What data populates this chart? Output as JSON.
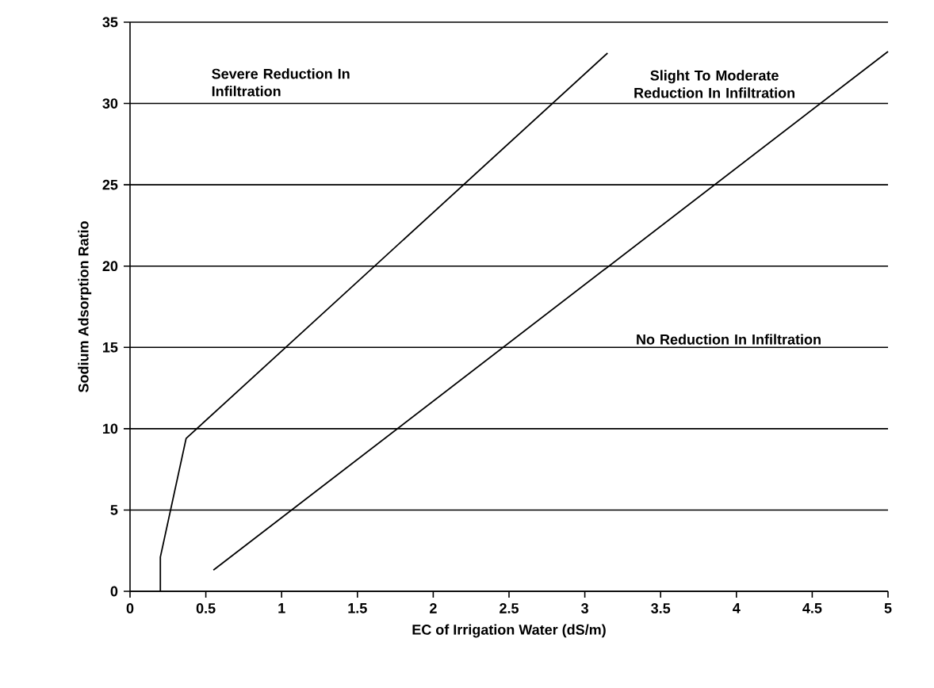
{
  "chart_data": {
    "type": "line",
    "xlabel": "EC of Irrigation Water (dS/m)",
    "ylabel": "Sodium Adsorption Ratio",
    "series": [
      {
        "color": "#000000",
        "x": [
          0.2,
          0.2,
          0.37,
          3.15
        ],
        "values": [
          0,
          2.1,
          9.4,
          33.1
        ]
      },
      {
        "color": "#000000",
        "x": [
          0.55,
          5
        ],
        "values": [
          1.3,
          33.2
        ]
      }
    ],
    "xlim": [
      0,
      5
    ],
    "ylim": [
      0,
      35
    ],
    "xticks": [
      0,
      0.5,
      1,
      1.5,
      2,
      2.5,
      3,
      3.5,
      4,
      4.5,
      5
    ],
    "yticks": [
      0,
      5,
      10,
      15,
      20,
      25,
      30,
      35
    ],
    "grid": "y",
    "marker": "none",
    "line_style": "solid",
    "annotations": [
      "Severe Reduction In Infiltration",
      "Slight To Moderate Reduction In Infiltration",
      "No Reduction In Infiltration"
    ]
  }
}
